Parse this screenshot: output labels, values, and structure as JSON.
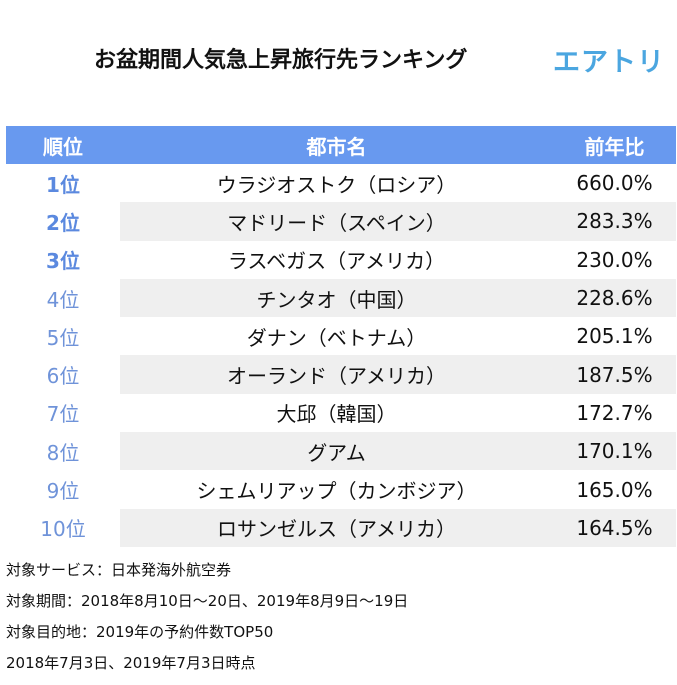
{
  "header": {
    "title": "お盆期間人気急上昇旅行先ランキング",
    "logo": "エアトリ"
  },
  "table": {
    "columns": [
      "順位",
      "都市名",
      "前年比"
    ],
    "rows": [
      {
        "rank": "1位",
        "city": "ウラジオストク（ロシア）",
        "ratio": "660.0%"
      },
      {
        "rank": "2位",
        "city": "マドリード（スペイン）",
        "ratio": "283.3%"
      },
      {
        "rank": "3位",
        "city": "ラスベガス（アメリカ）",
        "ratio": "230.0%"
      },
      {
        "rank": "4位",
        "city": "チンタオ（中国）",
        "ratio": "228.6%"
      },
      {
        "rank": "5位",
        "city": "ダナン（ベトナム）",
        "ratio": "205.1%"
      },
      {
        "rank": "6位",
        "city": "オーランド（アメリカ）",
        "ratio": "187.5%"
      },
      {
        "rank": "7位",
        "city": "大邱（韓国）",
        "ratio": "172.7%"
      },
      {
        "rank": "8位",
        "city": "グアム",
        "ratio": "170.1%"
      },
      {
        "rank": "9位",
        "city": "シェムリアップ（カンボジア）",
        "ratio": "165.0%"
      },
      {
        "rank": "10位",
        "city": "ロサンゼルス（アメリカ）",
        "ratio": "164.5%"
      }
    ]
  },
  "notes": [
    "対象サービス：日本発海外航空券",
    "対象期間：2018年8月10日～20日、2019年8月9日～19日",
    "対象目的地：2019年の予約件数TOP50",
    "2018年7月3日、2019年7月3日時点"
  ],
  "colors": {
    "header_bg": "#6899ef",
    "rank_text": "#6f93d9",
    "logo": "#4ba6e0",
    "row_shade": "#efefef"
  }
}
